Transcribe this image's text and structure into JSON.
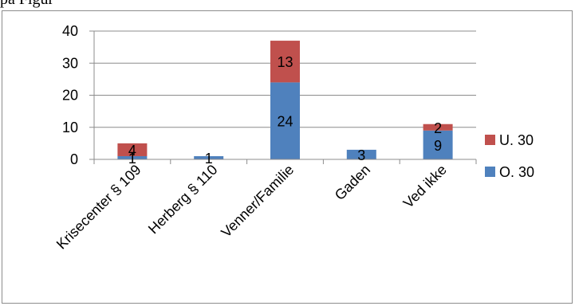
{
  "top_text": "på Figur",
  "chart_data": {
    "type": "bar",
    "stacked": true,
    "categories": [
      "Krisecenter § 109",
      "Herberg § 110",
      "Venner/Familie",
      "Gaden",
      "Ved ikke"
    ],
    "series": [
      {
        "name": "O. 30",
        "color": "#4f81bd",
        "values": [
          1,
          1,
          24,
          3,
          9
        ],
        "labels": [
          "1",
          "1",
          "24",
          "3",
          "9"
        ]
      },
      {
        "name": "U. 30",
        "color": "#c0504d",
        "values": [
          4,
          0,
          13,
          0,
          2
        ],
        "labels": [
          "4",
          "",
          "13",
          "",
          "2"
        ]
      }
    ],
    "ylim": [
      0,
      40
    ],
    "yticks": [
      0,
      10,
      20,
      30,
      40
    ],
    "grid": true,
    "legend_position": "right",
    "title": "",
    "xlabel": "",
    "ylabel": ""
  }
}
